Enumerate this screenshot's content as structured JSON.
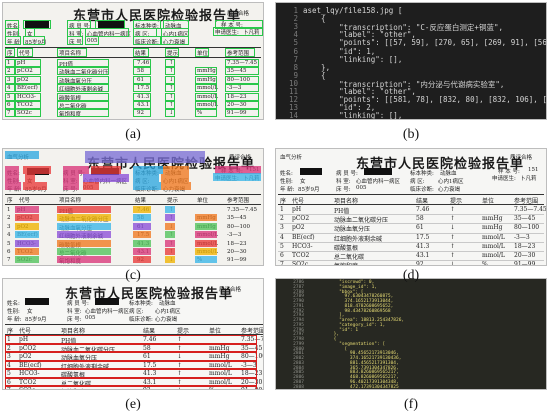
{
  "captions": [
    "(a)",
    "(b)",
    "(c)",
    "(d)",
    "(e)",
    "(f)"
  ],
  "report": {
    "title": "东营市人民医院检验报告单",
    "status": "质评合格",
    "sample_label": "样 本 号:",
    "sample_no": "151",
    "apply_label": "申请医生:",
    "apply_doctor": "卜凡莉",
    "name_label": "姓名:",
    "section_label": "病 员 号:",
    "sample_type_label": "标本种类:",
    "sample_type": "动脉血",
    "sex_label": "性别:",
    "sex": "女",
    "dept_label": "科 室:",
    "dept": "心血管内科一病区",
    "ward_label": "病 区:",
    "ward": "心内1病区",
    "age_label": "年 龄:",
    "age": "85岁9月",
    "bed_label": "床 号:",
    "bed": "005",
    "diag_label": "临床诊断:",
    "diag": "心力衰竭",
    "header_cols": [
      "序",
      "代号",
      "项目名称",
      "结果",
      "提示",
      "单位",
      "参考范围"
    ],
    "rows": [
      {
        "no": "1",
        "code": "pH",
        "name": "PH值",
        "result": "7.46",
        "flag": "↑",
        "unit": "",
        "range": "7.35—7.45"
      },
      {
        "no": "2",
        "code": "pCO2",
        "name": "动脉血二氧化碳分压",
        "result": "58",
        "flag": "↑",
        "unit": "mmHg",
        "range": "35—45"
      },
      {
        "no": "3",
        "code": "pO2",
        "name": "动脉血氧分压",
        "result": "61",
        "flag": "↓",
        "unit": "mmHg",
        "range": "80—100"
      },
      {
        "no": "4",
        "code": "BE(ecf)",
        "name": "红细胞外液剩余碱",
        "result": "17.5",
        "flag": "↑",
        "unit": "mmol/L",
        "range": "-3—3"
      },
      {
        "no": "5",
        "code": "HCO3-",
        "name": "碳酸氢根",
        "result": "41.3",
        "flag": "↑",
        "unit": "mmol/L",
        "range": "18—23"
      },
      {
        "no": "6",
        "code": "TCO2",
        "name": "总二氧化碳",
        "result": "43.1",
        "flag": "↑",
        "unit": "mmol/L",
        "range": "20—30"
      },
      {
        "no": "7",
        "code": "SO2c",
        "name": "氧饱和度",
        "result": "92",
        "flag": "↓",
        "unit": "%",
        "range": "91—99"
      }
    ],
    "c_title_prefix": "血气分析"
  },
  "code_b": {
    "lines": [
      {
        "n": "1",
        "t": "aset_lqy/file158.jpg ["
      },
      {
        "n": "2",
        "t": "    {"
      },
      {
        "n": "3",
        "t": "        \"transcription\": \"C-反应蛋白测定+铜蓝\","
      },
      {
        "n": "4",
        "t": "        \"label\": \"other\","
      },
      {
        "n": "5",
        "t": "        \"points\": [[57, 59], [270, 65], [269, 91], [56, 84]],"
      },
      {
        "n": "6",
        "t": "        \"id\": 1,"
      },
      {
        "n": "7",
        "t": "        \"linking\": [],"
      },
      {
        "n": "8",
        "t": "    },"
      },
      {
        "n": "9",
        "t": "    {"
      },
      {
        "n": "10",
        "t": "        \"transcription\": \"内分泌与代谢病实验室\","
      },
      {
        "n": "11",
        "t": "        \"label\": \"other\","
      },
      {
        "n": "12",
        "t": "        \"points\": [[581, 78], [832, 80], [832, 106], [581, 104]],"
      },
      {
        "n": "13",
        "t": "        \"id\": 2,"
      },
      {
        "n": "14",
        "t": "        \"linking\": [],"
      }
    ]
  },
  "code_f": {
    "lines": [
      {
        "n": "2786",
        "t": "          \"iscrowd\": 0,"
      },
      {
        "n": "2787",
        "t": "          \"image_id\": 1,"
      },
      {
        "n": "2788",
        "t": "          \"bbox\": ["
      },
      {
        "n": "2789",
        "t": "            97.63043478260875,"
      },
      {
        "n": "2790",
        "t": "            374.1652173913044,"
      },
      {
        "n": "2791",
        "t": "            818.4782608695652,"
      },
      {
        "n": "2792",
        "t": "            98.43478260869568"
      },
      {
        "n": "2793",
        "t": "          ],"
      },
      {
        "n": "2794",
        "t": "          \"area\": 18813.254347826,"
      },
      {
        "n": "2795",
        "t": "          \"category_id\": 1,"
      },
      {
        "n": "2796",
        "t": "          \"id\": 1"
      },
      {
        "n": "2797",
        "t": "        },"
      },
      {
        "n": "2798",
        "t": "        {"
      },
      {
        "n": "2799",
        "t": "          \"segmentation\": ["
      },
      {
        "n": "2800",
        "t": "            ["
      },
      {
        "n": "2801",
        "t": "              90.45652173913046,"
      },
      {
        "n": "2802",
        "t": "              374.16521739130436,"
      },
      {
        "n": "2803",
        "t": "              881.4565217391304,"
      },
      {
        "n": "2804",
        "t": "              365.7391304347826,"
      },
      {
        "n": "2805",
        "t": "              883.8260869565217,"
      },
      {
        "n": "2806",
        "t": "              468.8260869565217,"
      },
      {
        "n": "2807",
        "t": "              96.40217391304348,"
      },
      {
        "n": "2808",
        "t": "              472.17391304347825"
      }
    ]
  }
}
